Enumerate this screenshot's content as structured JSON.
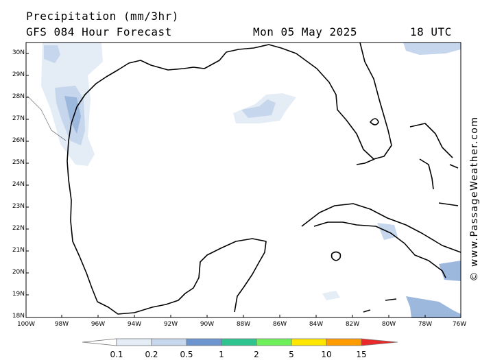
{
  "header": {
    "title": "Precipitation (mm/3hr)",
    "model": "GFS 084 Hour Forecast",
    "date": "Mon 05 May 2025",
    "time": "18 UTC"
  },
  "credit": "© www.PassageWeather.com",
  "map": {
    "lat_labels": [
      "30N",
      "29N",
      "28N",
      "27N",
      "26N",
      "25N",
      "24N",
      "23N",
      "22N",
      "21N",
      "20N",
      "19N",
      "18N"
    ],
    "lon_labels": [
      "100W",
      "98W",
      "96W",
      "94W",
      "92W",
      "90W",
      "88W",
      "86W",
      "84W",
      "82W",
      "80W",
      "78W",
      "76W"
    ],
    "land_color": "#ffffff",
    "coast_color": "#000000"
  },
  "legend": {
    "labels": [
      "0.1",
      "0.2",
      "0.5",
      "1",
      "2",
      "5",
      "10",
      "15"
    ],
    "colors": [
      "#ffffff",
      "#e4ecf6",
      "#c6d6ec",
      "#9db8dd",
      "#6c95d0",
      "#2ec38f",
      "#6ef05a",
      "#ffe600",
      "#ff9a00",
      "#e82a2a"
    ]
  }
}
